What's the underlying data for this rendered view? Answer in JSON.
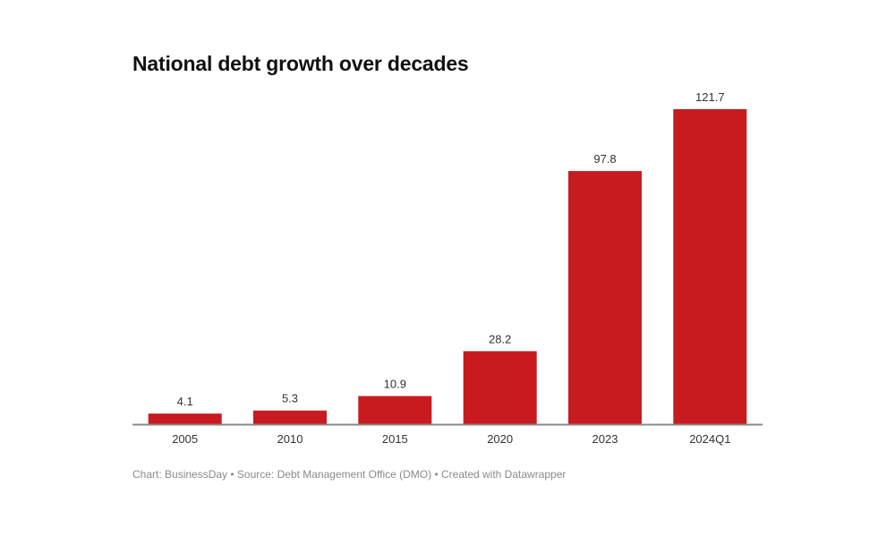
{
  "chart_data": {
    "type": "bar",
    "title": "National debt growth over decades",
    "categories": [
      "2005",
      "2010",
      "2015",
      "2020",
      "2023",
      "2024Q1"
    ],
    "values": [
      4.1,
      5.3,
      10.9,
      28.2,
      97.8,
      121.7
    ],
    "data_labels": [
      "4.1",
      "5.3",
      "10.9",
      "28.2",
      "97.8",
      "121.7"
    ],
    "xlabel": "",
    "ylabel": "",
    "ylim": [
      0,
      121.7
    ],
    "grid": false,
    "legend": "none",
    "bar_color": "#c81b1f",
    "axis_color": "#888888"
  },
  "footer": "Chart: BusinessDay • Source: Debt Management Office (DMO) • Created with Datawrapper"
}
